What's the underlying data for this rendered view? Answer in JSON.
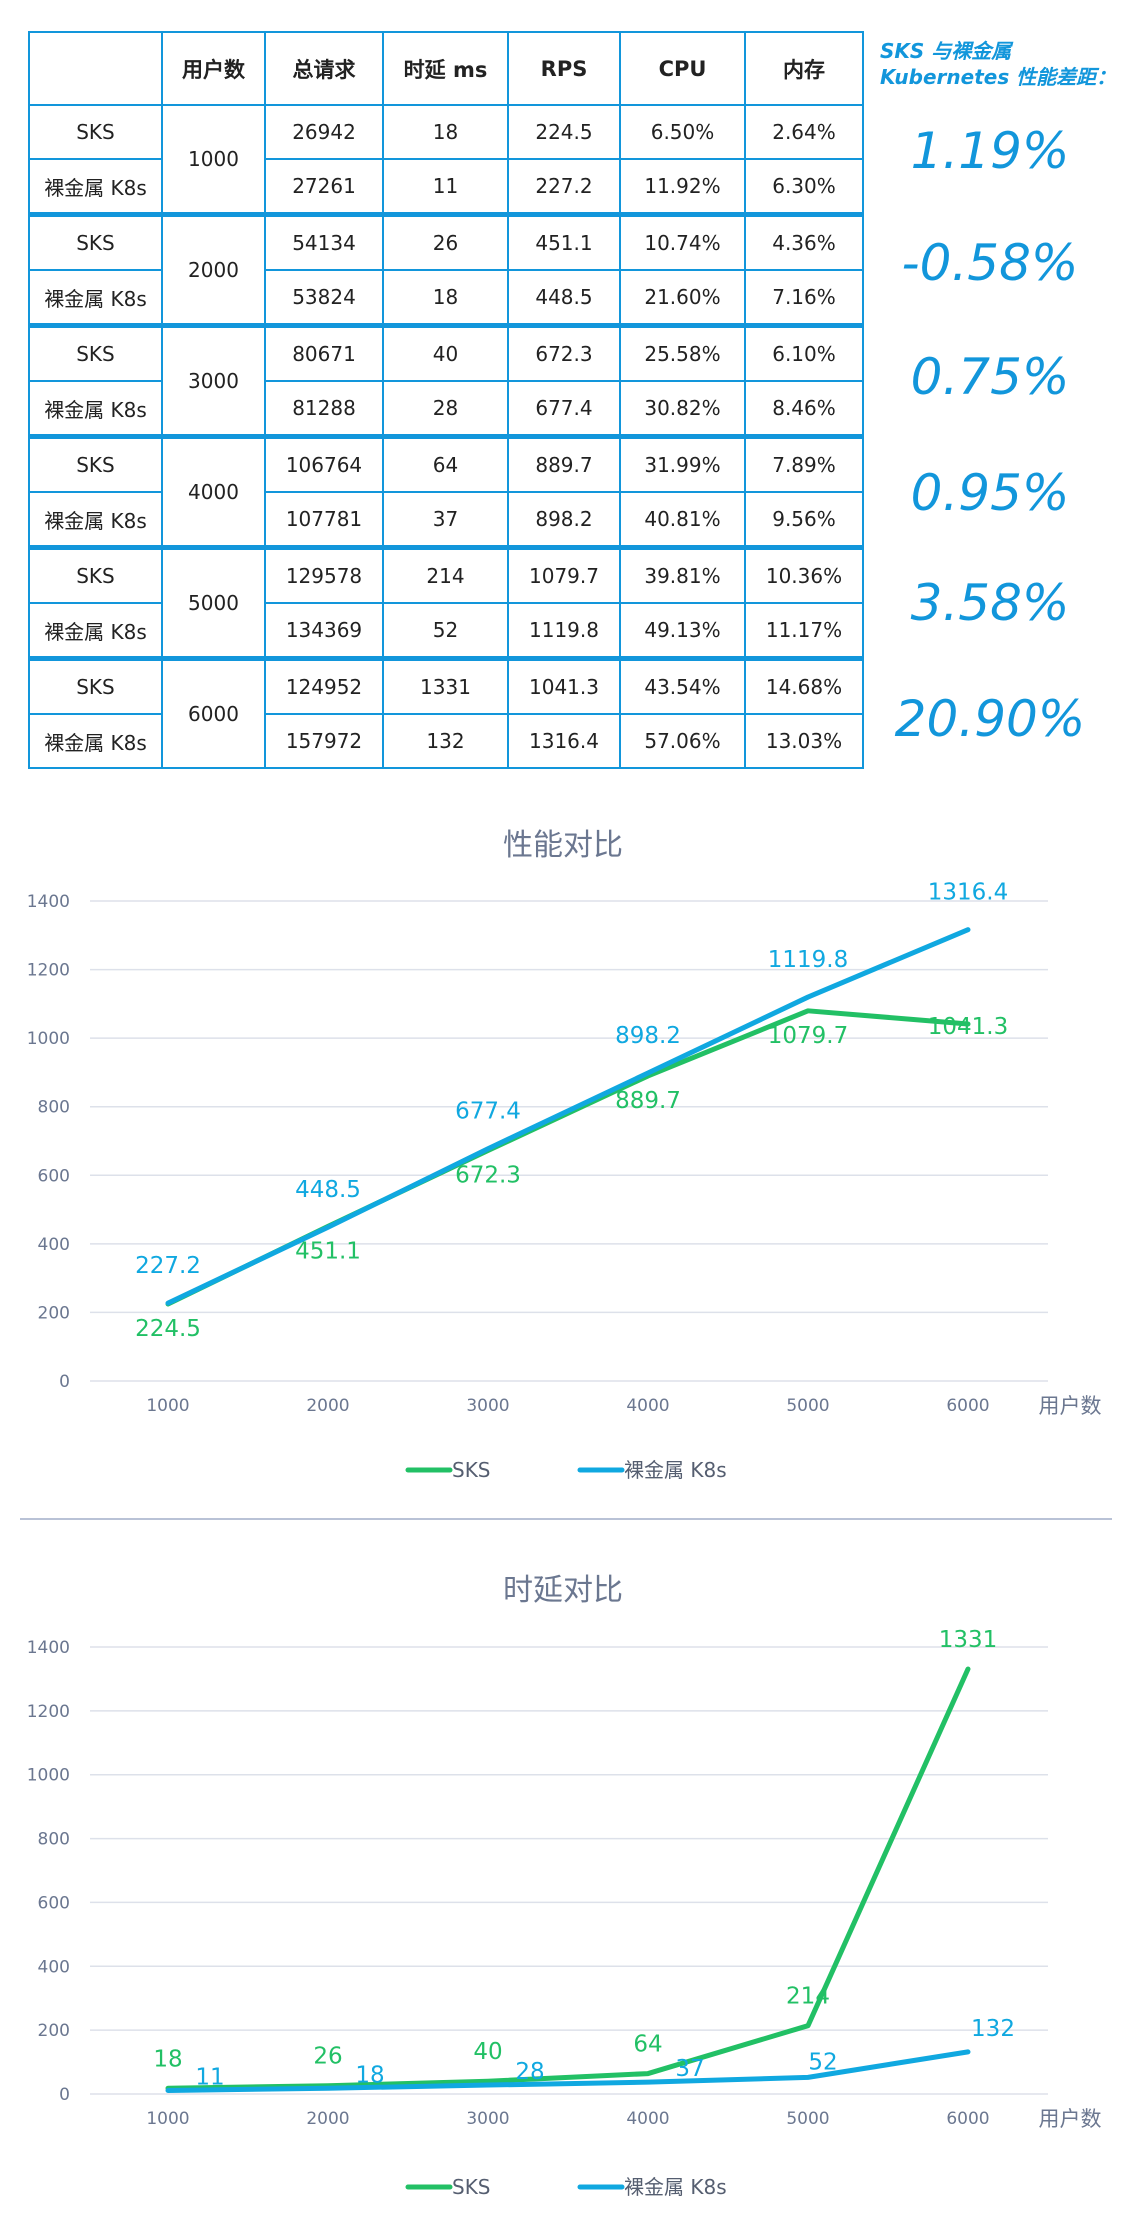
{
  "table": {
    "headers": [
      "",
      "用户数",
      "总请求",
      "时延 ms",
      "RPS",
      "CPU",
      "内存"
    ],
    "groups": [
      {
        "users": "1000",
        "rows": [
          {
            "name": "SKS",
            "requests": "26942",
            "latency": "18",
            "rps": "224.5",
            "cpu": "6.50%",
            "mem": "2.64%"
          },
          {
            "name": "裸金属 K8s",
            "requests": "27261",
            "latency": "11",
            "rps": "227.2",
            "cpu": "11.92%",
            "mem": "6.30%"
          }
        ]
      },
      {
        "users": "2000",
        "rows": [
          {
            "name": "SKS",
            "requests": "54134",
            "latency": "26",
            "rps": "451.1",
            "cpu": "10.74%",
            "mem": "4.36%"
          },
          {
            "name": "裸金属 K8s",
            "requests": "53824",
            "latency": "18",
            "rps": "448.5",
            "cpu": "21.60%",
            "mem": "7.16%"
          }
        ]
      },
      {
        "users": "3000",
        "rows": [
          {
            "name": "SKS",
            "requests": "80671",
            "latency": "40",
            "rps": "672.3",
            "cpu": "25.58%",
            "mem": "6.10%"
          },
          {
            "name": "裸金属 K8s",
            "requests": "81288",
            "latency": "28",
            "rps": "677.4",
            "cpu": "30.82%",
            "mem": "8.46%"
          }
        ]
      },
      {
        "users": "4000",
        "rows": [
          {
            "name": "SKS",
            "requests": "106764",
            "latency": "64",
            "rps": "889.7",
            "cpu": "31.99%",
            "mem": "7.89%"
          },
          {
            "name": "裸金属 K8s",
            "requests": "107781",
            "latency": "37",
            "rps": "898.2",
            "cpu": "40.81%",
            "mem": "9.56%"
          }
        ]
      },
      {
        "users": "5000",
        "rows": [
          {
            "name": "SKS",
            "requests": "129578",
            "latency": "214",
            "rps": "1079.7",
            "cpu": "39.81%",
            "mem": "10.36%"
          },
          {
            "name": "裸金属 K8s",
            "requests": "134369",
            "latency": "52",
            "rps": "1119.8",
            "cpu": "49.13%",
            "mem": "11.17%"
          }
        ]
      },
      {
        "users": "6000",
        "rows": [
          {
            "name": "SKS",
            "requests": "124952",
            "latency": "1331",
            "rps": "1041.3",
            "cpu": "43.54%",
            "mem": "14.68%"
          },
          {
            "name": "裸金属 K8s",
            "requests": "157972",
            "latency": "132",
            "rps": "1316.4",
            "cpu": "57.06%",
            "mem": "13.03%"
          }
        ]
      }
    ]
  },
  "diff": {
    "title_line1": "SKS 与裸金属",
    "title_line2": "Kubernetes 性能差距：",
    "values": [
      "1.19%",
      "-0.58%",
      "0.75%",
      "0.95%",
      "3.58%",
      "20.90%"
    ]
  },
  "colors": {
    "sks": "#22c065",
    "k8s": "#10a8e0",
    "table_border": "#1296db",
    "diff_text": "#1296db",
    "axis_text": "#6b7790",
    "grid": "#dde1ea"
  },
  "chart_data": [
    {
      "type": "line",
      "title": "性能对比",
      "xlabel": "用户数",
      "ylabel": "",
      "x": [
        1000,
        2000,
        3000,
        4000,
        5000,
        6000
      ],
      "ylim": [
        0,
        1400
      ],
      "yticks": [
        0,
        200,
        400,
        600,
        800,
        1000,
        1200,
        1400
      ],
      "grid": true,
      "legend_position": "bottom",
      "series": [
        {
          "name": "SKS",
          "values": [
            224.5,
            451.1,
            672.3,
            889.7,
            1079.7,
            1041.3
          ],
          "labels": [
            "224.5",
            "451.1",
            "672.3",
            "889.7",
            "1079.7",
            "1041.3"
          ]
        },
        {
          "name": "裸金属 K8s",
          "values": [
            227.2,
            448.5,
            677.4,
            898.2,
            1119.8,
            1316.4
          ],
          "labels": [
            "227.2",
            "448.5",
            "677.4",
            "898.2",
            "1119.8",
            "1316.4"
          ]
        }
      ]
    },
    {
      "type": "line",
      "title": "时延对比",
      "xlabel": "用户数",
      "ylabel": "",
      "x": [
        1000,
        2000,
        3000,
        4000,
        5000,
        6000
      ],
      "ylim": [
        0,
        1400
      ],
      "yticks": [
        0,
        200,
        400,
        600,
        800,
        1000,
        1200,
        1400
      ],
      "grid": true,
      "legend_position": "bottom",
      "series": [
        {
          "name": "SKS",
          "values": [
            18,
            26,
            40,
            64,
            214,
            1331
          ],
          "labels": [
            "18",
            "26",
            "40",
            "64",
            "214",
            "1331"
          ]
        },
        {
          "name": "裸金属 K8s",
          "values": [
            11,
            18,
            28,
            37,
            52,
            132
          ],
          "labels": [
            "11",
            "18",
            "28",
            "37",
            "52",
            "132"
          ]
        }
      ]
    }
  ]
}
